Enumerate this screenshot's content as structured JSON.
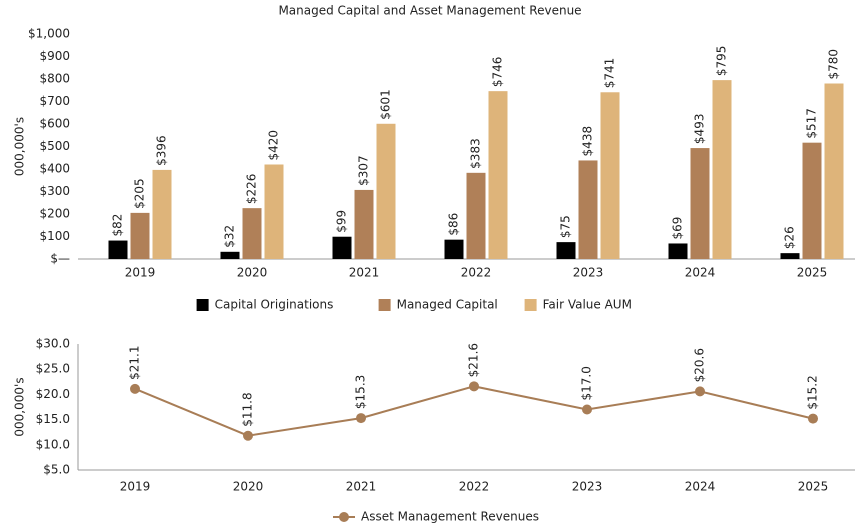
{
  "chart_data": [
    {
      "type": "bar",
      "title": "Managed Capital and Asset Management Revenue",
      "ylabel": "000,000's",
      "categories": [
        "2019",
        "2020",
        "2021",
        "2022",
        "2023",
        "2024",
        "2025"
      ],
      "series": [
        {
          "name": "Capital Originations",
          "color": "#000000",
          "values": [
            82,
            32,
            99,
            86,
            75,
            69,
            26
          ],
          "value_labels": [
            "$82",
            "$32",
            "$99",
            "$86",
            "$75",
            "$69",
            "$26"
          ]
        },
        {
          "name": "Managed Capital",
          "color": "#b08058",
          "values": [
            205,
            226,
            307,
            383,
            438,
            493,
            517
          ],
          "value_labels": [
            "$205",
            "$226",
            "$307",
            "$383",
            "$438",
            "$493",
            "$517"
          ]
        },
        {
          "name": "Fair Value AUM",
          "color": "#deb47a",
          "values": [
            396,
            420,
            601,
            746,
            741,
            795,
            780
          ],
          "value_labels": [
            "$396",
            "$420",
            "$601",
            "$746",
            "$741",
            "$795",
            "$780"
          ]
        }
      ],
      "ylim": [
        0,
        1000
      ],
      "yticks": [
        {
          "value": 0,
          "label": "$—"
        },
        {
          "value": 100,
          "label": "$100"
        },
        {
          "value": 200,
          "label": "$200"
        },
        {
          "value": 300,
          "label": "$300"
        },
        {
          "value": 400,
          "label": "$400"
        },
        {
          "value": 500,
          "label": "$500"
        },
        {
          "value": 600,
          "label": "$600"
        },
        {
          "value": 700,
          "label": "$700"
        },
        {
          "value": 800,
          "label": "$800"
        },
        {
          "value": 900,
          "label": "$900"
        },
        {
          "value": 1000,
          "label": "$1,000"
        }
      ]
    },
    {
      "type": "line",
      "ylabel": "000,000's",
      "categories": [
        "2019",
        "2020",
        "2021",
        "2022",
        "2023",
        "2024",
        "2025"
      ],
      "series": [
        {
          "name": "Asset Management Revenues",
          "color": "#a87d56",
          "values": [
            21.1,
            11.8,
            15.3,
            21.6,
            17.0,
            20.6,
            15.2
          ],
          "value_labels": [
            "$21.1",
            "$11.8",
            "$15.3",
            "$21.6",
            "$17.0",
            "$20.6",
            "$15.2"
          ]
        }
      ],
      "ylim": [
        5,
        30
      ],
      "yticks": [
        {
          "value": 5,
          "label": "$5.0"
        },
        {
          "value": 10,
          "label": "$10.0"
        },
        {
          "value": 15,
          "label": "$15.0"
        },
        {
          "value": 20,
          "label": "$20.0"
        },
        {
          "value": 25,
          "label": "$25.0"
        },
        {
          "value": 30,
          "label": "$30.0"
        }
      ]
    }
  ]
}
